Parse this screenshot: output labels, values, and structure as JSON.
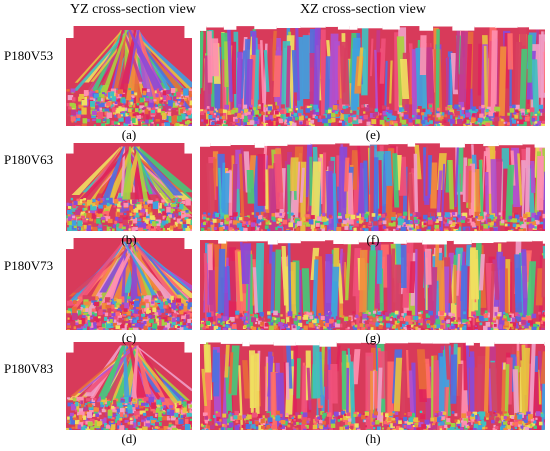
{
  "column_titles": {
    "yz": "YZ cross-section view",
    "xz": "XZ cross-section view"
  },
  "rows": [
    {
      "label": "P180V53",
      "yz_panel": "(a)",
      "xz_panel": "(e)"
    },
    {
      "label": "P180V63",
      "yz_panel": "(b)",
      "xz_panel": "(f)"
    },
    {
      "label": "P180V73",
      "yz_panel": "(c)",
      "xz_panel": "(g)"
    },
    {
      "label": "P180V83",
      "yz_panel": "(d)",
      "xz_panel": "(h)"
    }
  ],
  "palette": [
    "#e0245a",
    "#f0507a",
    "#d84060",
    "#ff6a6a",
    "#e86a3a",
    "#f28c3c",
    "#c43a8c",
    "#b050d0",
    "#8a4ad8",
    "#f0a0c8",
    "#e8c040",
    "#a8d040",
    "#48c878",
    "#40c0c0",
    "#40a0e0",
    "#5070e0",
    "#f0e060",
    "#ff8fb0"
  ]
}
